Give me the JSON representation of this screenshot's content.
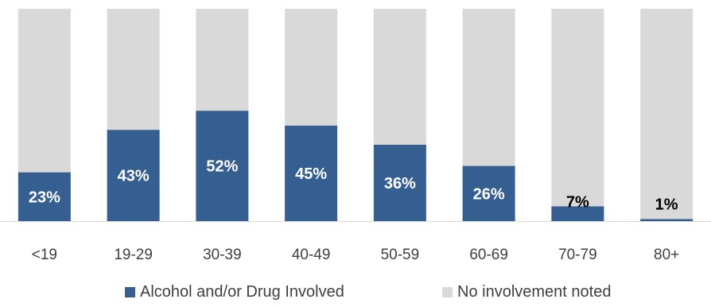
{
  "chart_data": {
    "type": "bar",
    "stacked": true,
    "categories": [
      "<19",
      "19-29",
      "30-39",
      "40-49",
      "50-59",
      "60-69",
      "70-79",
      "80+"
    ],
    "series": [
      {
        "name": "Alcohol and/or Drug Involved",
        "values": [
          23,
          43,
          52,
          45,
          36,
          26,
          7,
          1
        ],
        "color": "#365f91"
      },
      {
        "name": "No involvement noted",
        "values": [
          77,
          57,
          48,
          55,
          64,
          74,
          93,
          99
        ],
        "color": "#d9d9d9"
      }
    ],
    "data_labels": [
      "23%",
      "43%",
      "52%",
      "45%",
      "36%",
      "26%",
      "7%",
      "1%"
    ],
    "ylim": [
      0,
      100
    ],
    "grid": false,
    "legend_position": "bottom",
    "title": "",
    "xlabel": "",
    "ylabel": ""
  }
}
